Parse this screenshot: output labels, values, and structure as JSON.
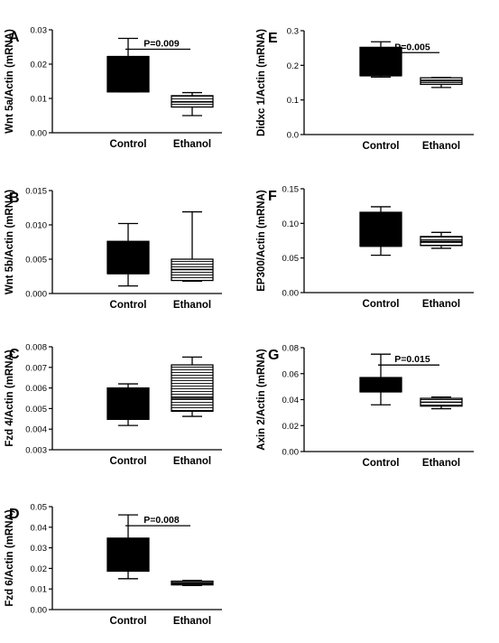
{
  "chart_data": [
    {
      "panel": "A",
      "type": "box",
      "ylabel": "Wnt 5a/Actin (mRNA)",
      "ylim": [
        0,
        0.03
      ],
      "yticks": [
        "0.00",
        "0.01",
        "0.02",
        "0.03"
      ],
      "categories": [
        "Control",
        "Ethanol"
      ],
      "boxes": [
        {
          "category": "Control",
          "min": 0.0119,
          "q1": 0.0119,
          "median": 0.0222,
          "q3": 0.0222,
          "max": 0.0275,
          "fill": "solid"
        },
        {
          "category": "Ethanol",
          "min": 0.005,
          "q1": 0.0075,
          "median": 0.009,
          "q3": 0.0108,
          "max": 0.0117,
          "fill": "striped"
        }
      ],
      "annotation": "P=0.009"
    },
    {
      "panel": "B",
      "type": "box",
      "ylabel": "Wnt 5b/Actin (mRNA)",
      "ylim": [
        0,
        0.015
      ],
      "yticks": [
        "0.000",
        "0.005",
        "0.010",
        "0.015"
      ],
      "categories": [
        "Control",
        "Ethanol"
      ],
      "boxes": [
        {
          "category": "Control",
          "min": 0.0011,
          "q1": 0.0029,
          "median": 0.0029,
          "q3": 0.0076,
          "max": 0.0102,
          "fill": "solid"
        },
        {
          "category": "Ethanol",
          "min": 0.0018,
          "q1": 0.0019,
          "median": 0.0035,
          "q3": 0.005,
          "max": 0.0119,
          "fill": "striped"
        }
      ],
      "annotation": ""
    },
    {
      "panel": "C",
      "type": "box",
      "ylabel": "Fzd 4/Actin (mRNA)",
      "ylim": [
        0.003,
        0.008
      ],
      "yticks": [
        "0.003",
        "0.004",
        "0.005",
        "0.006",
        "0.007",
        "0.008"
      ],
      "categories": [
        "Control",
        "Ethanol"
      ],
      "boxes": [
        {
          "category": "Control",
          "min": 0.00418,
          "q1": 0.00448,
          "median": 0.00448,
          "q3": 0.006,
          "max": 0.0062,
          "fill": "solid"
        },
        {
          "category": "Ethanol",
          "min": 0.00462,
          "q1": 0.00487,
          "median": 0.0055,
          "q3": 0.00712,
          "max": 0.0075,
          "fill": "striped"
        }
      ],
      "annotation": ""
    },
    {
      "panel": "D",
      "type": "box",
      "ylabel": "Fzd 6/Actin (mRNA)",
      "ylim": [
        0,
        0.05
      ],
      "yticks": [
        "0.00",
        "0.01",
        "0.02",
        "0.03",
        "0.04",
        "0.05"
      ],
      "categories": [
        "Control",
        "Ethanol"
      ],
      "boxes": [
        {
          "category": "Control",
          "min": 0.015,
          "q1": 0.0187,
          "median": 0.0187,
          "q3": 0.0347,
          "max": 0.046,
          "fill": "solid"
        },
        {
          "category": "Ethanol",
          "min": 0.0117,
          "q1": 0.012,
          "median": 0.013,
          "q3": 0.0138,
          "max": 0.0142,
          "fill": "striped"
        }
      ],
      "annotation": "P=0.008"
    },
    {
      "panel": "E",
      "type": "box",
      "ylabel": "Didxc 1/Actin (mRNA)",
      "ylim": [
        0,
        0.3
      ],
      "yticks": [
        "0.0",
        "0.1",
        "0.2",
        "0.3"
      ],
      "categories": [
        "Control",
        "Ethanol"
      ],
      "boxes": [
        {
          "category": "Control",
          "min": 0.166,
          "q1": 0.17,
          "median": 0.17,
          "q3": 0.252,
          "max": 0.268,
          "fill": "solid"
        },
        {
          "category": "Ethanol",
          "min": 0.136,
          "q1": 0.145,
          "median": 0.155,
          "q3": 0.164,
          "max": 0.165,
          "fill": "striped"
        }
      ],
      "annotation": "P=0.005"
    },
    {
      "panel": "F",
      "type": "box",
      "ylabel": "EP300/Actin (mRNA)",
      "ylim": [
        0,
        0.15
      ],
      "yticks": [
        "0.00",
        "0.05",
        "0.10",
        "0.15"
      ],
      "categories": [
        "Control",
        "Ethanol"
      ],
      "boxes": [
        {
          "category": "Control",
          "min": 0.054,
          "q1": 0.067,
          "median": 0.067,
          "q3": 0.116,
          "max": 0.124,
          "fill": "solid"
        },
        {
          "category": "Ethanol",
          "min": 0.064,
          "q1": 0.068,
          "median": 0.074,
          "q3": 0.081,
          "max": 0.087,
          "fill": "striped"
        }
      ],
      "annotation": ""
    },
    {
      "panel": "G",
      "type": "box",
      "ylabel": "Axin 2/Actin (mRNA)",
      "ylim": [
        0,
        0.08
      ],
      "yticks": [
        "0.00",
        "0.02",
        "0.04",
        "0.06",
        "0.08"
      ],
      "categories": [
        "Control",
        "Ethanol"
      ],
      "boxes": [
        {
          "category": "Control",
          "min": 0.036,
          "q1": 0.046,
          "median": 0.046,
          "q3": 0.057,
          "max": 0.075,
          "fill": "solid"
        },
        {
          "category": "Ethanol",
          "min": 0.033,
          "q1": 0.035,
          "median": 0.038,
          "q3": 0.041,
          "max": 0.042,
          "fill": "striped"
        }
      ],
      "annotation": "P=0.015"
    }
  ]
}
